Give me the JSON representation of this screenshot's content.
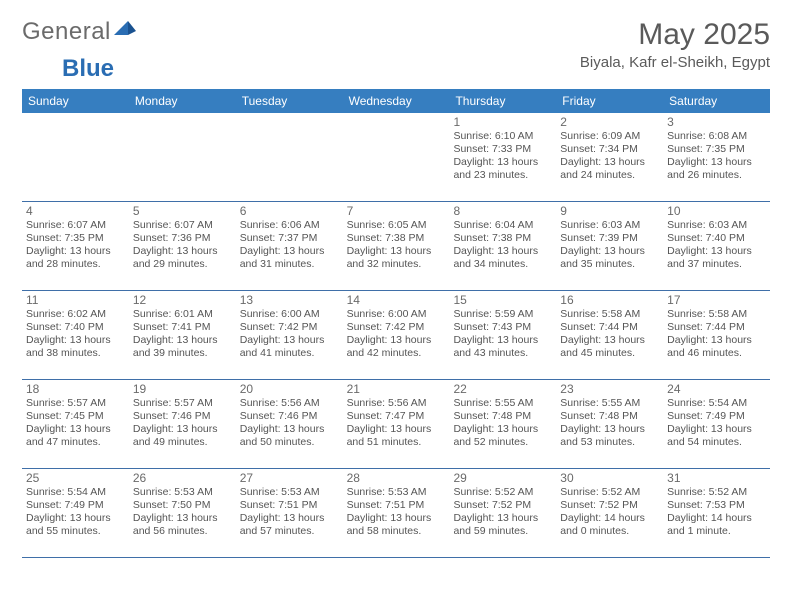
{
  "logo": {
    "part1": "General",
    "part2": "Blue"
  },
  "title": "May 2025",
  "location": "Biyala, Kafr el-Sheikh, Egypt",
  "colors": {
    "header_bg": "#367ec0",
    "border": "#3f6fa8"
  },
  "weekdays": [
    "Sunday",
    "Monday",
    "Tuesday",
    "Wednesday",
    "Thursday",
    "Friday",
    "Saturday"
  ],
  "weeks": [
    [
      null,
      null,
      null,
      null,
      {
        "n": "1",
        "sr": "6:10 AM",
        "ss": "7:33 PM",
        "dl": "13 hours and 23 minutes."
      },
      {
        "n": "2",
        "sr": "6:09 AM",
        "ss": "7:34 PM",
        "dl": "13 hours and 24 minutes."
      },
      {
        "n": "3",
        "sr": "6:08 AM",
        "ss": "7:35 PM",
        "dl": "13 hours and 26 minutes."
      }
    ],
    [
      {
        "n": "4",
        "sr": "6:07 AM",
        "ss": "7:35 PM",
        "dl": "13 hours and 28 minutes."
      },
      {
        "n": "5",
        "sr": "6:07 AM",
        "ss": "7:36 PM",
        "dl": "13 hours and 29 minutes."
      },
      {
        "n": "6",
        "sr": "6:06 AM",
        "ss": "7:37 PM",
        "dl": "13 hours and 31 minutes."
      },
      {
        "n": "7",
        "sr": "6:05 AM",
        "ss": "7:38 PM",
        "dl": "13 hours and 32 minutes."
      },
      {
        "n": "8",
        "sr": "6:04 AM",
        "ss": "7:38 PM",
        "dl": "13 hours and 34 minutes."
      },
      {
        "n": "9",
        "sr": "6:03 AM",
        "ss": "7:39 PM",
        "dl": "13 hours and 35 minutes."
      },
      {
        "n": "10",
        "sr": "6:03 AM",
        "ss": "7:40 PM",
        "dl": "13 hours and 37 minutes."
      }
    ],
    [
      {
        "n": "11",
        "sr": "6:02 AM",
        "ss": "7:40 PM",
        "dl": "13 hours and 38 minutes."
      },
      {
        "n": "12",
        "sr": "6:01 AM",
        "ss": "7:41 PM",
        "dl": "13 hours and 39 minutes."
      },
      {
        "n": "13",
        "sr": "6:00 AM",
        "ss": "7:42 PM",
        "dl": "13 hours and 41 minutes."
      },
      {
        "n": "14",
        "sr": "6:00 AM",
        "ss": "7:42 PM",
        "dl": "13 hours and 42 minutes."
      },
      {
        "n": "15",
        "sr": "5:59 AM",
        "ss": "7:43 PM",
        "dl": "13 hours and 43 minutes."
      },
      {
        "n": "16",
        "sr": "5:58 AM",
        "ss": "7:44 PM",
        "dl": "13 hours and 45 minutes."
      },
      {
        "n": "17",
        "sr": "5:58 AM",
        "ss": "7:44 PM",
        "dl": "13 hours and 46 minutes."
      }
    ],
    [
      {
        "n": "18",
        "sr": "5:57 AM",
        "ss": "7:45 PM",
        "dl": "13 hours and 47 minutes."
      },
      {
        "n": "19",
        "sr": "5:57 AM",
        "ss": "7:46 PM",
        "dl": "13 hours and 49 minutes."
      },
      {
        "n": "20",
        "sr": "5:56 AM",
        "ss": "7:46 PM",
        "dl": "13 hours and 50 minutes."
      },
      {
        "n": "21",
        "sr": "5:56 AM",
        "ss": "7:47 PM",
        "dl": "13 hours and 51 minutes."
      },
      {
        "n": "22",
        "sr": "5:55 AM",
        "ss": "7:48 PM",
        "dl": "13 hours and 52 minutes."
      },
      {
        "n": "23",
        "sr": "5:55 AM",
        "ss": "7:48 PM",
        "dl": "13 hours and 53 minutes."
      },
      {
        "n": "24",
        "sr": "5:54 AM",
        "ss": "7:49 PM",
        "dl": "13 hours and 54 minutes."
      }
    ],
    [
      {
        "n": "25",
        "sr": "5:54 AM",
        "ss": "7:49 PM",
        "dl": "13 hours and 55 minutes."
      },
      {
        "n": "26",
        "sr": "5:53 AM",
        "ss": "7:50 PM",
        "dl": "13 hours and 56 minutes."
      },
      {
        "n": "27",
        "sr": "5:53 AM",
        "ss": "7:51 PM",
        "dl": "13 hours and 57 minutes."
      },
      {
        "n": "28",
        "sr": "5:53 AM",
        "ss": "7:51 PM",
        "dl": "13 hours and 58 minutes."
      },
      {
        "n": "29",
        "sr": "5:52 AM",
        "ss": "7:52 PM",
        "dl": "13 hours and 59 minutes."
      },
      {
        "n": "30",
        "sr": "5:52 AM",
        "ss": "7:52 PM",
        "dl": "14 hours and 0 minutes."
      },
      {
        "n": "31",
        "sr": "5:52 AM",
        "ss": "7:53 PM",
        "dl": "14 hours and 1 minute."
      }
    ]
  ],
  "labels": {
    "sunrise": "Sunrise:",
    "sunset": "Sunset:",
    "daylight": "Daylight:"
  }
}
